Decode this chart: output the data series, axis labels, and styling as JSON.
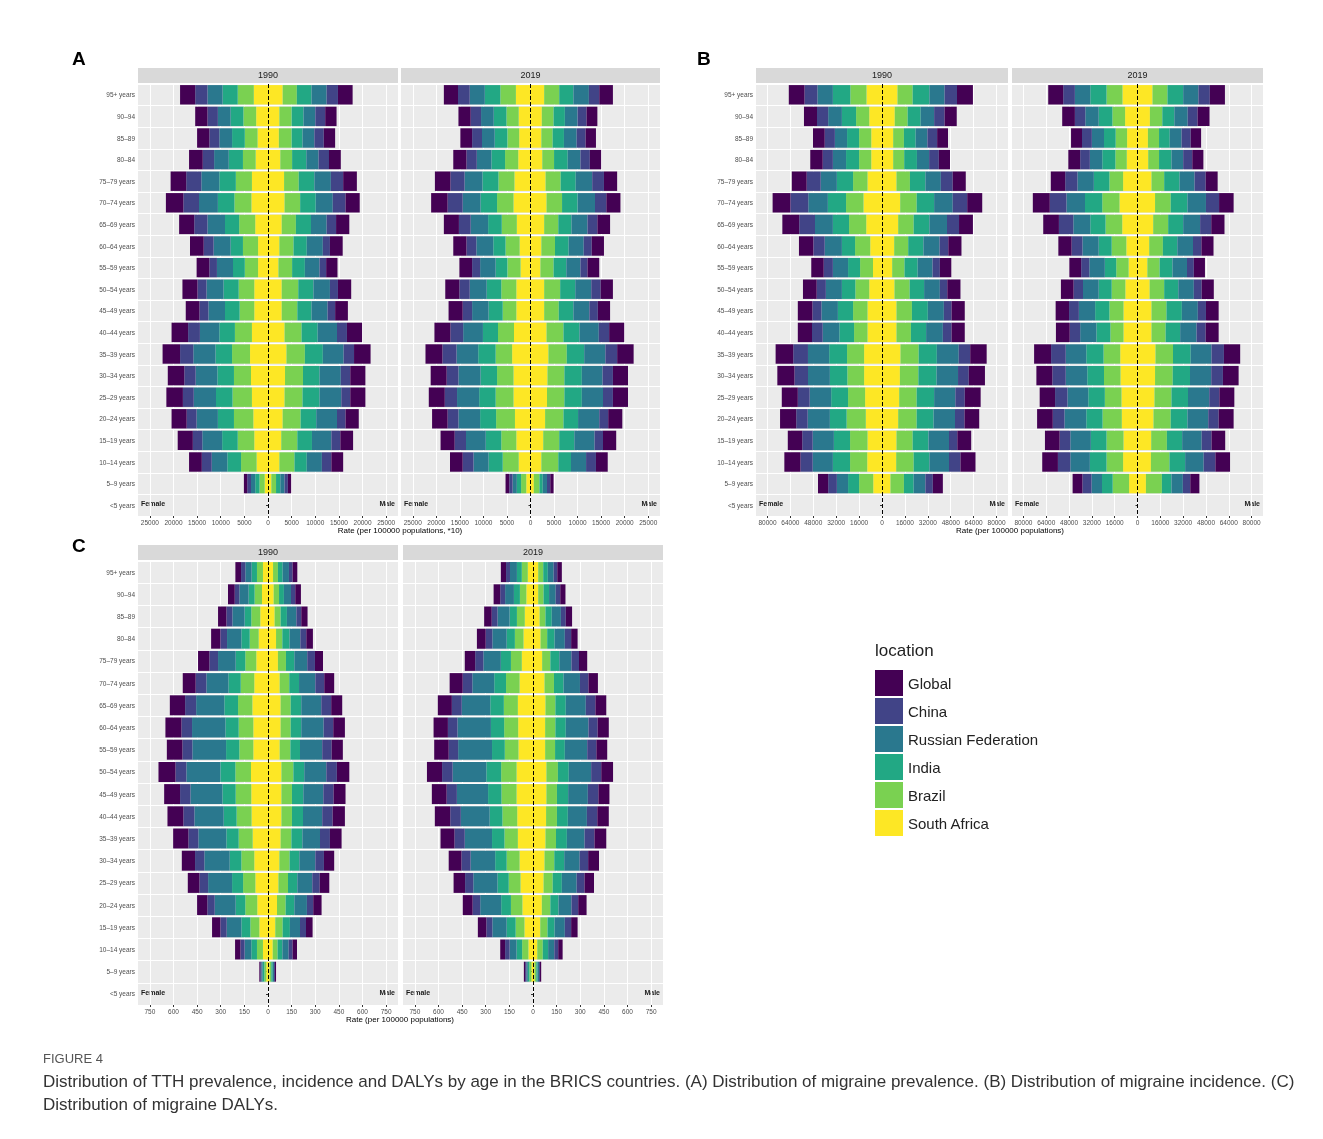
{
  "chart_data": [
    {
      "type": "bar",
      "orientation": "horizontal",
      "stacked": true,
      "title": "1990",
      "xlabel": "Rate (per 100000 populations, *10)",
      "annotations": [
        "A",
        "Female",
        "Male"
      ],
      "grid": true,
      "legend": false,
      "categories": [
        "95+ years",
        "90–94",
        "85–89",
        "80–84",
        "75–79 years",
        "70–74 years",
        "65–69 years",
        "60–64 years",
        "55–59 years",
        "50–54 years",
        "45–49 years",
        "40–44 years",
        "35–39 years",
        "30–34 years",
        "25–29 years",
        "20–24 years",
        "15–19 years",
        "10–14 years",
        "5–9 years",
        "<5 years"
      ],
      "xlim": [
        -27500,
        27500
      ],
      "xticks": [
        {
          "value": -25000,
          "label": "25000"
        },
        {
          "value": -20000,
          "label": "20000"
        },
        {
          "value": -15000,
          "label": "15000"
        },
        {
          "value": -10000,
          "label": "10000"
        },
        {
          "value": -5000,
          "label": "5000"
        },
        0,
        5000,
        10000,
        15000,
        20000,
        25000
      ],
      "ref_lines": [
        {
          "axis": "x",
          "value": 0,
          "color": "#000000",
          "line_style": "dashed"
        }
      ],
      "series": [
        {
          "color": "#fde725",
          "values": [
            -3000,
            -2500,
            -2200,
            -2600,
            -3400,
            -3500,
            -2700,
            -2100,
            -2100,
            -2900,
            -2900,
            -3400,
            -3800,
            -3600,
            -3400,
            -3100,
            -2900,
            -2400,
            -700,
            null
          ]
        },
        {
          "color": "#7ad151",
          "values": [
            -3400,
            -2700,
            -2700,
            -2700,
            -3400,
            -3600,
            -3400,
            -3200,
            -2800,
            -3300,
            -3100,
            -3600,
            -3800,
            -3600,
            -4100,
            -4100,
            -3500,
            -3300,
            -1100,
            null
          ]
        },
        {
          "color": "#22a884",
          "values": [
            -3200,
            -2700,
            -2700,
            -3000,
            -3500,
            -3500,
            -3000,
            -2600,
            -2500,
            -3200,
            -3100,
            -3300,
            -3500,
            -3500,
            -3500,
            -3400,
            -3300,
            -2900,
            -900,
            null
          ]
        },
        {
          "color": "#2a788e",
          "values": [
            -3200,
            -2700,
            -2700,
            -3100,
            -3800,
            -4000,
            -3700,
            -3600,
            -3400,
            -3600,
            -3500,
            -4100,
            -4700,
            -4600,
            -4700,
            -4500,
            -4200,
            -3300,
            -900,
            null
          ]
        },
        {
          "color": "#414487",
          "values": [
            -2600,
            -2200,
            -2100,
            -2400,
            -3200,
            -3300,
            -2800,
            -2100,
            -1600,
            -1900,
            -1900,
            -2500,
            -2800,
            -2400,
            -2300,
            -2100,
            -2000,
            -2100,
            -800,
            null
          ]
        },
        {
          "color": "#440154",
          "values": [
            -3200,
            -2600,
            -2600,
            -2900,
            -3300,
            -3700,
            -3200,
            -2900,
            -2700,
            -3200,
            -2900,
            -3500,
            -3700,
            -3500,
            -3500,
            -3200,
            -3200,
            -2700,
            -700,
            null
          ]
        },
        {
          "color": "#fde725",
          "values": [
            3100,
            2400,
            2300,
            2600,
            3400,
            3500,
            2900,
            2400,
            2200,
            2900,
            2900,
            3500,
            3900,
            3600,
            3500,
            3100,
            2800,
            2400,
            700,
            null
          ]
        },
        {
          "color": "#7ad151",
          "values": [
            3000,
            2600,
            2700,
            2500,
            3100,
            3300,
            3000,
            3000,
            2900,
            3500,
            3300,
            3600,
            3900,
            3800,
            3800,
            3800,
            3400,
            3200,
            1000,
            null
          ]
        },
        {
          "color": "#22a884",
          "values": [
            3100,
            2500,
            2300,
            3000,
            3300,
            3300,
            3200,
            2800,
            2700,
            3200,
            3000,
            3400,
            3800,
            3500,
            3600,
            3300,
            3100,
            2600,
            900,
            null
          ]
        },
        {
          "color": "#2a788e",
          "values": [
            3200,
            2500,
            2500,
            2600,
            3500,
            3600,
            3300,
            3400,
            3100,
            3500,
            3400,
            4100,
            4400,
            4500,
            4600,
            4400,
            4100,
            3200,
            900,
            null
          ]
        },
        {
          "color": "#414487",
          "values": [
            2400,
            2100,
            2000,
            2200,
            2600,
            2700,
            2000,
            1500,
            1400,
            1700,
            1600,
            2100,
            2200,
            2000,
            1900,
            1800,
            1900,
            2000,
            700,
            null
          ]
        },
        {
          "color": "#440154",
          "values": [
            3100,
            2400,
            2400,
            2500,
            2900,
            3000,
            2800,
            2700,
            2400,
            2800,
            2700,
            3200,
            3500,
            3200,
            3200,
            2800,
            2700,
            2500,
            700,
            null
          ]
        }
      ]
    },
    {
      "type": "bar",
      "orientation": "horizontal",
      "stacked": true,
      "title": "2019",
      "annotations": [
        "Female",
        "Male"
      ],
      "grid": true,
      "legend": false,
      "tick_labels": "x",
      "xlim": [
        -27500,
        27500
      ],
      "xticks": [
        {
          "value": -25000,
          "label": "25000"
        },
        {
          "value": -20000,
          "label": "20000"
        },
        {
          "value": -15000,
          "label": "15000"
        },
        {
          "value": -10000,
          "label": "10000"
        },
        {
          "value": -5000,
          "label": "5000"
        },
        0,
        5000,
        10000,
        15000,
        20000,
        25000
      ],
      "ref_lines": [
        {
          "axis": "x",
          "value": 0,
          "color": "#000000",
          "line_style": "dashed"
        }
      ],
      "series": [
        {
          "color": "#fde725",
          "values": [
            -3100,
            -2500,
            -2400,
            -2600,
            -3400,
            -3600,
            -2900,
            -2300,
            -2100,
            -3000,
            -3000,
            -3500,
            -3900,
            -3600,
            -3600,
            -3300,
            -3000,
            -2500,
            -900,
            null
          ]
        },
        {
          "color": "#7ad151",
          "values": [
            -3300,
            -2600,
            -2500,
            -2800,
            -3400,
            -3500,
            -3200,
            -3000,
            -2800,
            -3200,
            -2900,
            -3400,
            -3500,
            -3500,
            -3800,
            -4000,
            -3200,
            -3400,
            -1100,
            null
          ]
        },
        {
          "color": "#22a884",
          "values": [
            -3300,
            -2700,
            -2700,
            -2900,
            -3400,
            -3500,
            -2900,
            -2600,
            -2500,
            -3100,
            -3000,
            -3200,
            -3700,
            -3500,
            -3500,
            -3400,
            -3300,
            -3000,
            -900,
            null
          ]
        },
        {
          "color": "#2a788e",
          "values": [
            -3200,
            -2700,
            -2700,
            -3100,
            -3800,
            -3800,
            -3700,
            -3600,
            -3300,
            -3600,
            -3500,
            -4200,
            -4600,
            -4700,
            -4700,
            -4600,
            -4200,
            -3200,
            -900,
            null
          ]
        },
        {
          "color": "#414487",
          "values": [
            -2500,
            -2200,
            -2100,
            -2200,
            -3000,
            -3200,
            -2500,
            -2100,
            -1700,
            -2200,
            -2000,
            -2700,
            -3000,
            -2500,
            -2600,
            -2300,
            -2400,
            -2300,
            -700,
            null
          ]
        },
        {
          "color": "#440154",
          "values": [
            -3000,
            -2600,
            -2500,
            -2800,
            -3300,
            -3500,
            -3200,
            -2800,
            -2700,
            -3000,
            -3000,
            -3400,
            -3600,
            -3400,
            -3400,
            -3300,
            -3000,
            -2700,
            -800,
            null
          ]
        },
        {
          "color": "#fde725",
          "values": [
            2900,
            2400,
            2300,
            2500,
            3200,
            3400,
            2900,
            2300,
            2100,
            2900,
            2900,
            3400,
            3800,
            3600,
            3500,
            3100,
            2700,
            2300,
            700,
            null
          ]
        },
        {
          "color": "#7ad151",
          "values": [
            3200,
            2500,
            2400,
            2500,
            3200,
            3300,
            3000,
            2900,
            2800,
            3400,
            3100,
            3600,
            3900,
            3600,
            3700,
            3900,
            3400,
            3600,
            1200,
            null
          ]
        },
        {
          "color": "#22a884",
          "values": [
            3000,
            2400,
            2400,
            2900,
            3200,
            3300,
            2800,
            2900,
            2700,
            3200,
            3100,
            3400,
            3700,
            3700,
            3700,
            3100,
            3200,
            2700,
            700,
            null
          ]
        },
        {
          "color": "#2a788e",
          "values": [
            3300,
            2700,
            2700,
            2700,
            3500,
            3700,
            3400,
            3200,
            3000,
            3400,
            3400,
            4100,
            4500,
            4400,
            4500,
            4500,
            4300,
            3200,
            900,
            null
          ]
        },
        {
          "color": "#414487",
          "values": [
            2200,
            1900,
            1900,
            2000,
            2500,
            2400,
            2100,
            1700,
            1500,
            2000,
            1800,
            2200,
            2500,
            2200,
            2100,
            1900,
            1800,
            2100,
            700,
            null
          ]
        },
        {
          "color": "#440154",
          "values": [
            2900,
            2300,
            2200,
            2400,
            2800,
            3000,
            2700,
            2600,
            2500,
            2600,
            2600,
            3200,
            3500,
            3200,
            3200,
            3000,
            2800,
            2500,
            700,
            null
          ]
        }
      ]
    },
    {
      "type": "bar",
      "orientation": "horizontal",
      "stacked": true,
      "title": "1990",
      "xlabel": "Rate (per 100000 populations)",
      "annotations": [
        "B",
        "Female",
        "Male"
      ],
      "grid": true,
      "legend": false,
      "categories": [
        "95+ years",
        "90–94",
        "85–89",
        "80–84",
        "75–79 years",
        "70–74 years",
        "65–69 years",
        "60–64 years",
        "55–59 years",
        "50–54 years",
        "45–49 years",
        "40–44 years",
        "35–39 years",
        "30–34 years",
        "25–29 years",
        "20–24 years",
        "15–19 years",
        "10–14 years",
        "5–9 years",
        "<5 years"
      ],
      "xlim": [
        -88000,
        88000
      ],
      "xticks": [
        {
          "value": -80000,
          "label": "80000"
        },
        {
          "value": -64000,
          "label": "64000"
        },
        {
          "value": -48000,
          "label": "48000"
        },
        {
          "value": -32000,
          "label": "32000"
        },
        {
          "value": -16000,
          "label": "16000"
        },
        0,
        16000,
        32000,
        48000,
        64000,
        80000
      ],
      "ref_lines": [
        {
          "axis": "x",
          "value": 0,
          "color": "#000000",
          "line_style": "dashed"
        }
      ],
      "series": [
        {
          "color": "#fde725",
          "values": [
            -10800,
            -8900,
            -7500,
            -7500,
            -10100,
            -12900,
            -11000,
            -8200,
            -6300,
            -8900,
            -10100,
            -10100,
            -12500,
            -12500,
            -11800,
            -11300,
            -10100,
            -10300,
            -6100,
            null
          ]
        },
        {
          "color": "#7ad151",
          "values": [
            -11300,
            -9200,
            -8500,
            -8500,
            -10100,
            -12200,
            -12000,
            -10600,
            -9000,
            -9700,
            -10100,
            -9400,
            -11900,
            -11700,
            -11900,
            -13400,
            -12200,
            -12000,
            -9900,
            null
          ]
        },
        {
          "color": "#22a884",
          "values": [
            -12200,
            -9900,
            -8400,
            -9100,
            -11300,
            -12700,
            -11300,
            -9200,
            -8400,
            -9400,
            -10600,
            -10300,
            -12500,
            -12200,
            -11800,
            -11700,
            -11300,
            -12000,
            -7700,
            null
          ]
        },
        {
          "color": "#2a788e",
          "values": [
            -10800,
            -9600,
            -8500,
            -9200,
            -11300,
            -13700,
            -12500,
            -12000,
            -10600,
            -11200,
            -11500,
            -11600,
            -14800,
            -15300,
            -15000,
            -15500,
            -14800,
            -14100,
            -7800,
            null
          ]
        },
        {
          "color": "#414487",
          "values": [
            -9000,
            -7800,
            -7100,
            -7100,
            -9800,
            -12400,
            -11000,
            -7900,
            -6400,
            -6400,
            -6300,
            -7500,
            -10300,
            -9400,
            -8300,
            -8000,
            -7300,
            -8500,
            -6100,
            null
          ]
        },
        {
          "color": "#440154",
          "values": [
            -11000,
            -9100,
            -8200,
            -8700,
            -10400,
            -12500,
            -11800,
            -10100,
            -8700,
            -9600,
            -10200,
            -9900,
            -12300,
            -12000,
            -11200,
            -11300,
            -10100,
            -11300,
            -7100,
            null
          ]
        },
        {
          "color": "#fde725",
          "values": [
            10800,
            8900,
            7800,
            7800,
            10100,
            12700,
            11300,
            8500,
            7100,
            8700,
            10100,
            10100,
            12900,
            12500,
            12000,
            11300,
            10100,
            9900,
            5900,
            null
          ]
        },
        {
          "color": "#7ad151",
          "values": [
            10600,
            9000,
            7500,
            7700,
            9400,
            11500,
            10800,
            9800,
            8600,
            10600,
            10800,
            10100,
            12700,
            12900,
            12200,
            12900,
            11300,
            12200,
            9400,
            null
          ]
        },
        {
          "color": "#22a884",
          "values": [
            11700,
            9100,
            8200,
            8900,
            10800,
            12200,
            11000,
            10600,
            9200,
            10100,
            11100,
            10600,
            12700,
            12700,
            12200,
            11800,
            11000,
            11000,
            6800,
            null
          ]
        },
        {
          "color": "#2a788e",
          "values": [
            10600,
            9400,
            8200,
            8500,
            10800,
            13000,
            12300,
            11300,
            10400,
            11000,
            11200,
            11700,
            15300,
            15000,
            14800,
            15000,
            14400,
            13700,
            8200,
            null
          ]
        },
        {
          "color": "#414487",
          "values": [
            8700,
            7300,
            6800,
            6800,
            8300,
            10100,
            8400,
            6100,
            5100,
            5200,
            5400,
            6100,
            8000,
            7500,
            6600,
            6600,
            5800,
            8000,
            5200,
            null
          ]
        },
        {
          "color": "#440154",
          "values": [
            11100,
            8500,
            7600,
            7800,
            9100,
            10500,
            9700,
            9200,
            8000,
            9200,
            9200,
            9200,
            11500,
            11300,
            11100,
            10300,
            9700,
            10500,
            7000,
            null
          ]
        }
      ]
    },
    {
      "type": "bar",
      "orientation": "horizontal",
      "stacked": true,
      "title": "2019",
      "annotations": [
        "Female",
        "Male"
      ],
      "grid": true,
      "legend": false,
      "tick_labels": "x",
      "xlim": [
        -88000,
        88000
      ],
      "xticks": [
        {
          "value": -80000,
          "label": "80000"
        },
        {
          "value": -64000,
          "label": "64000"
        },
        {
          "value": -48000,
          "label": "48000"
        },
        {
          "value": -32000,
          "label": "32000"
        },
        {
          "value": -16000,
          "label": "16000"
        },
        0,
        16000,
        32000,
        48000,
        64000,
        80000
      ],
      "ref_lines": [
        {
          "axis": "x",
          "value": 0,
          "color": "#000000",
          "line_style": "dashed"
        }
      ],
      "series": [
        {
          "color": "#fde725",
          "values": [
            -10500,
            -8700,
            -7300,
            -7500,
            -10100,
            -12600,
            -10700,
            -7800,
            -6200,
            -8500,
            -9800,
            -9800,
            -12100,
            -11900,
            -11200,
            -11000,
            -9800,
            -10100,
            -5900,
            null
          ]
        },
        {
          "color": "#7ad151",
          "values": [
            -11200,
            -8900,
            -8000,
            -8000,
            -9600,
            -12100,
            -11700,
            -10300,
            -8700,
            -9600,
            -9900,
            -9200,
            -11700,
            -11600,
            -11700,
            -13500,
            -11900,
            -11600,
            -11500,
            null
          ]
        },
        {
          "color": "#22a884",
          "values": [
            -11400,
            -9600,
            -8200,
            -9200,
            -10900,
            -12100,
            -10700,
            -9100,
            -8000,
            -9100,
            -10000,
            -9800,
            -12100,
            -11700,
            -11600,
            -11400,
            -11000,
            -11700,
            -7500,
            null
          ]
        },
        {
          "color": "#2a788e",
          "values": [
            -10800,
            -9400,
            -8500,
            -8700,
            -11500,
            -13000,
            -11900,
            -11400,
            -10900,
            -11000,
            -11400,
            -11400,
            -14400,
            -15100,
            -14600,
            -15300,
            -14400,
            -13700,
            -7300,
            null
          ]
        },
        {
          "color": "#414487",
          "values": [
            -8200,
            -7300,
            -6900,
            -6800,
            -8600,
            -11700,
            -10100,
            -7600,
            -5700,
            -6600,
            -6900,
            -7300,
            -10300,
            -9400,
            -8700,
            -8200,
            -7500,
            -8700,
            -6400,
            null
          ]
        },
        {
          "color": "#440154",
          "values": [
            -10500,
            -8900,
            -7700,
            -8300,
            -10100,
            -11900,
            -11000,
            -9300,
            -8300,
            -8900,
            -9400,
            -9700,
            -11900,
            -11200,
            -10800,
            -11000,
            -10300,
            -11000,
            -6900,
            null
          ]
        },
        {
          "color": "#fde725",
          "values": [
            10500,
            8700,
            7300,
            7500,
            9800,
            12300,
            11000,
            8200,
            6900,
            8500,
            9800,
            9800,
            12600,
            12300,
            11900,
            11200,
            9600,
            9400,
            5900,
            null
          ]
        },
        {
          "color": "#7ad151",
          "values": [
            10500,
            8700,
            7800,
            7600,
            8900,
            11000,
            10500,
            9600,
            8600,
            10200,
            10500,
            9900,
            12300,
            12400,
            11900,
            12100,
            11000,
            13000,
            11200,
            null
          ]
        },
        {
          "color": "#22a884",
          "values": [
            11000,
            8400,
            7500,
            8700,
            10800,
            11700,
            10500,
            10100,
            9000,
            9900,
            10800,
            10200,
            12400,
            12100,
            11600,
            11700,
            10700,
            11000,
            6700,
            null
          ]
        },
        {
          "color": "#2a788e",
          "values": [
            10700,
            9400,
            8300,
            8200,
            10500,
            13000,
            11900,
            11000,
            10200,
            10900,
            11200,
            11500,
            14600,
            14900,
            14900,
            14600,
            13700,
            13000,
            8000,
            null
          ]
        },
        {
          "color": "#414487",
          "values": [
            8000,
            6900,
            6400,
            6400,
            7800,
            9200,
            7800,
            5900,
            4800,
            5500,
            5700,
            6400,
            8700,
            8200,
            7100,
            7300,
            6900,
            8200,
            5200,
            null
          ]
        },
        {
          "color": "#440154",
          "values": [
            10600,
            8400,
            7300,
            7800,
            8400,
            10200,
            9300,
            8500,
            7800,
            8500,
            8900,
            9100,
            11400,
            11000,
            10500,
            10500,
            9600,
            10300,
            6400,
            null
          ]
        }
      ]
    },
    {
      "type": "bar",
      "orientation": "horizontal",
      "stacked": true,
      "title": "1990",
      "xlabel": "Rate (per 100000 populations)",
      "annotations": [
        "C",
        "FIGURE 4",
        "Distribution of TTH prevalence, incidence and DALYs by age in the BRICS countries. (A) Distribution of migraine prevalence. (B) Distribution of migraine incidence. (C) Distribution of migraine DALYs.",
        "Female",
        "Male"
      ],
      "grid": true,
      "legend": false,
      "categories": [
        "95+ years",
        "90–94",
        "85–89",
        "80–84",
        "75–79 years",
        "70–74 years",
        "65–69 years",
        "60–64 years",
        "55–59 years",
        "50–54 years",
        "45–49 years",
        "40–44 years",
        "35–39 years",
        "30–34 years",
        "25–29 years",
        "20–24 years",
        "15–19 years",
        "10–14 years",
        "5–9 years",
        "<5 years"
      ],
      "xlim": [
        -825,
        825
      ],
      "xticks": [
        {
          "value": -750,
          "label": "750"
        },
        {
          "value": -600,
          "label": "600"
        },
        {
          "value": -450,
          "label": "450"
        },
        {
          "value": -300,
          "label": "300"
        },
        {
          "value": -150,
          "label": "150"
        },
        0,
        150,
        300,
        450,
        600,
        750
      ],
      "ref_lines": [
        {
          "axis": "x",
          "value": 0,
          "color": "#000000",
          "line_style": "dashed"
        }
      ],
      "series": [
        {
          "color": "#fde725",
          "values": [
            -32,
            -38,
            -49,
            -59,
            -74,
            -87,
            -99,
            -93,
            -93,
            -108,
            -106,
            -104,
            -97,
            -87,
            -80,
            -68,
            -55,
            -32,
            -11,
            null
          ]
        },
        {
          "color": "#7ad151",
          "values": [
            -38,
            -47,
            -57,
            -57,
            -70,
            -86,
            -91,
            -93,
            -89,
            -99,
            -99,
            -95,
            -89,
            -82,
            -78,
            -76,
            -57,
            -38,
            -12,
            null
          ]
        },
        {
          "color": "#22a884",
          "values": [
            -34,
            -38,
            -42,
            -53,
            -61,
            -78,
            -87,
            -84,
            -84,
            -95,
            -84,
            -82,
            -78,
            -74,
            -70,
            -61,
            -57,
            -36,
            -11,
            null
          ]
        },
        {
          "color": "#2a788e",
          "values": [
            -40,
            -59,
            -78,
            -91,
            -112,
            -140,
            -179,
            -212,
            -214,
            -216,
            -203,
            -186,
            -178,
            -161,
            -152,
            -133,
            -93,
            -42,
            -8,
            null
          ]
        },
        {
          "color": "#414487",
          "values": [
            -27,
            -29,
            -38,
            -42,
            -55,
            -68,
            -70,
            -67,
            -63,
            -69,
            -66,
            -70,
            -63,
            -59,
            -55,
            -47,
            -40,
            -27,
            -7,
            null
          ]
        },
        {
          "color": "#440154",
          "values": [
            -36,
            -43,
            -53,
            -59,
            -72,
            -82,
            -97,
            -102,
            -99,
            -108,
            -101,
            -101,
            -97,
            -84,
            -74,
            -65,
            -53,
            -34,
            -6,
            null
          ]
        },
        {
          "color": "#fde725",
          "values": [
            32,
            36,
            42,
            51,
            63,
            74,
            80,
            80,
            74,
            85,
            85,
            85,
            80,
            72,
            66,
            57,
            46,
            30,
            11,
            null
          ]
        },
        {
          "color": "#7ad151",
          "values": [
            31,
            34,
            38,
            40,
            51,
            61,
            64,
            64,
            68,
            76,
            67,
            67,
            68,
            65,
            61,
            55,
            47,
            31,
            10,
            null
          ]
        },
        {
          "color": "#22a884",
          "values": [
            30,
            31,
            40,
            46,
            53,
            62,
            67,
            67,
            61,
            69,
            72,
            70,
            70,
            62,
            59,
            55,
            46,
            30,
            9,
            null
          ]
        },
        {
          "color": "#2a788e",
          "values": [
            40,
            45,
            60,
            68,
            82,
            103,
            127,
            142,
            141,
            140,
            127,
            122,
            112,
            101,
            95,
            80,
            64,
            40,
            8,
            null
          ]
        },
        {
          "color": "#414487",
          "values": [
            23,
            27,
            31,
            38,
            49,
            57,
            63,
            61,
            60,
            67,
            65,
            66,
            63,
            55,
            47,
            40,
            38,
            25,
            6,
            null
          ]
        },
        {
          "color": "#440154",
          "values": [
            30,
            36,
            40,
            42,
            51,
            63,
            70,
            74,
            71,
            79,
            76,
            78,
            74,
            65,
            61,
            53,
            42,
            28,
            7,
            null
          ]
        }
      ]
    },
    {
      "type": "bar",
      "orientation": "horizontal",
      "stacked": true,
      "title": "2019",
      "annotations": [
        "Female",
        "Male"
      ],
      "grid": true,
      "legend": "right",
      "legend_title": "location",
      "tick_labels": "x",
      "xlim": [
        -825,
        825
      ],
      "xticks": [
        {
          "value": -750,
          "label": "750"
        },
        {
          "value": -600,
          "label": "600"
        },
        {
          "value": -450,
          "label": "450"
        },
        {
          "value": -300,
          "label": "300"
        },
        {
          "value": -150,
          "label": "150"
        },
        0,
        150,
        300,
        450,
        600,
        750
      ],
      "ref_lines": [
        {
          "axis": "x",
          "value": 0,
          "color": "#000000",
          "line_style": "dashed"
        }
      ],
      "series": [
        {
          "name": "South Africa",
          "color": "#fde725",
          "values": [
            -33,
            -42,
            -52,
            -60,
            -71,
            -85,
            -96,
            -94,
            -92,
            -104,
            -104,
            -100,
            -96,
            -85,
            -79,
            -67,
            -54,
            -29,
            -10,
            null
          ]
        },
        {
          "name": "Brazil",
          "color": "#7ad151",
          "values": [
            -38,
            -41,
            -50,
            -55,
            -69,
            -86,
            -89,
            -89,
            -87,
            -98,
            -96,
            -94,
            -85,
            -82,
            -75,
            -73,
            -56,
            -40,
            -13,
            null
          ]
        },
        {
          "name": "India",
          "color": "#22a884",
          "values": [
            -31,
            -38,
            -46,
            -52,
            -64,
            -75,
            -86,
            -84,
            -81,
            -94,
            -85,
            -81,
            -79,
            -73,
            -71,
            -62,
            -57,
            -35,
            -10,
            null
          ]
        },
        {
          "name": "Russian Federation",
          "color": "#2a788e",
          "values": [
            -44,
            -56,
            -77,
            -91,
            -111,
            -139,
            -181,
            -212,
            -215,
            -214,
            -198,
            -183,
            -173,
            -156,
            -154,
            -133,
            -91,
            -44,
            -9,
            null
          ]
        },
        {
          "name": "China",
          "color": "#414487",
          "values": [
            -25,
            -31,
            -37,
            -42,
            -52,
            -61,
            -63,
            -61,
            -60,
            -67,
            -65,
            -67,
            -65,
            -58,
            -52,
            -48,
            -38,
            -29,
            -8,
            null
          ]
        },
        {
          "name": "Global",
          "color": "#440154",
          "values": [
            -33,
            -42,
            -48,
            -56,
            -66,
            -83,
            -89,
            -91,
            -92,
            -96,
            -94,
            -98,
            -89,
            -81,
            -73,
            -63,
            -54,
            -31,
            -8,
            null
          ]
        },
        {
          "color": "#fde725",
          "values": [
            33,
            33,
            42,
            48,
            58,
            73,
            79,
            77,
            77,
            85,
            85,
            83,
            79,
            73,
            67,
            56,
            46,
            27,
            10,
            null
          ]
        },
        {
          "color": "#7ad151",
          "values": [
            32,
            34,
            37,
            42,
            52,
            60,
            63,
            65,
            63,
            73,
            67,
            69,
            67,
            62,
            58,
            54,
            46,
            35,
            11,
            null
          ]
        },
        {
          "color": "#22a884",
          "values": [
            29,
            35,
            40,
            47,
            57,
            61,
            66,
            66,
            62,
            69,
            71,
            69,
            69,
            63,
            58,
            52,
            45,
            34,
            8,
            null
          ]
        },
        {
          "color": "#2a788e",
          "values": [
            37,
            42,
            58,
            65,
            77,
            104,
            127,
            144,
            142,
            142,
            125,
            121,
            112,
            98,
            94,
            82,
            65,
            39,
            9,
            null
          ]
        },
        {
          "color": "#414487",
          "values": [
            23,
            29,
            31,
            40,
            48,
            54,
            61,
            58,
            58,
            64,
            67,
            66,
            63,
            54,
            50,
            43,
            40,
            25,
            6,
            null
          ]
        },
        {
          "color": "#440154",
          "values": [
            29,
            33,
            40,
            41,
            52,
            60,
            69,
            71,
            69,
            75,
            70,
            73,
            75,
            69,
            60,
            53,
            41,
            28,
            8,
            null
          ]
        }
      ]
    }
  ]
}
